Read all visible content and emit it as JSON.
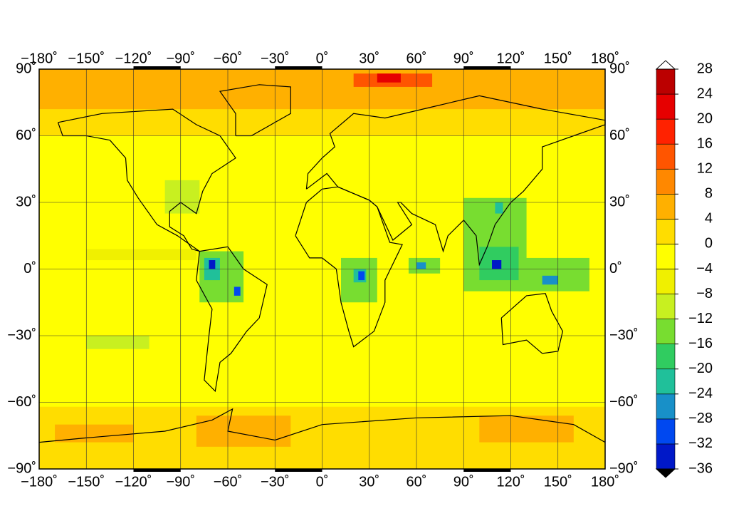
{
  "chart_data": {
    "type": "map",
    "xlim": [
      -180,
      180
    ],
    "ylim": [
      -90,
      90
    ],
    "xticks": [
      {
        "value": -180,
        "label": "−180˚"
      },
      {
        "value": -150,
        "label": "−150˚"
      },
      {
        "value": -120,
        "label": "−120˚"
      },
      {
        "value": -90,
        "label": "−90˚"
      },
      {
        "value": -60,
        "label": "−60˚"
      },
      {
        "value": -30,
        "label": "−30˚"
      },
      {
        "value": 0,
        "label": "0˚"
      },
      {
        "value": 30,
        "label": "30˚"
      },
      {
        "value": 60,
        "label": "60˚"
      },
      {
        "value": 90,
        "label": "90˚"
      },
      {
        "value": 120,
        "label": "120˚"
      },
      {
        "value": 150,
        "label": "150˚"
      },
      {
        "value": 180,
        "label": "180˚"
      }
    ],
    "yticks": [
      {
        "value": 90,
        "label": "90˚"
      },
      {
        "value": 60,
        "label": "60˚"
      },
      {
        "value": 30,
        "label": "30˚"
      },
      {
        "value": 0,
        "label": "0˚"
      },
      {
        "value": -30,
        "label": "−30˚"
      },
      {
        "value": -60,
        "label": "−60˚"
      },
      {
        "value": -90,
        "label": "−90˚"
      }
    ],
    "grid": true,
    "background_value": -2,
    "regions": [
      {
        "lon": [
          -180,
          180
        ],
        "lat": [
          60,
          90
        ],
        "value": 2
      },
      {
        "lon": [
          -180,
          180
        ],
        "lat": [
          72,
          90
        ],
        "value": 6
      },
      {
        "lon": [
          20,
          70
        ],
        "lat": [
          82,
          88
        ],
        "value": 14
      },
      {
        "lon": [
          35,
          50
        ],
        "lat": [
          84,
          88
        ],
        "value": 22
      },
      {
        "lon": [
          -180,
          180
        ],
        "lat": [
          -90,
          -62
        ],
        "value": 2
      },
      {
        "lon": [
          -170,
          -120
        ],
        "lat": [
          -78,
          -70
        ],
        "value": 6
      },
      {
        "lon": [
          -80,
          -20
        ],
        "lat": [
          -80,
          -66
        ],
        "value": 6
      },
      {
        "lon": [
          100,
          160
        ],
        "lat": [
          -78,
          -66
        ],
        "value": 5
      },
      {
        "lon": [
          -150,
          -80
        ],
        "lat": [
          4,
          9
        ],
        "value": -8
      },
      {
        "lon": [
          -150,
          -110
        ],
        "lat": [
          -36,
          -30
        ],
        "value": -10
      },
      {
        "lon": [
          -100,
          -78
        ],
        "lat": [
          25,
          40
        ],
        "value": -10
      },
      {
        "lon": [
          -78,
          -50
        ],
        "lat": [
          -15,
          8
        ],
        "value": -14
      },
      {
        "lon": [
          -75,
          -65
        ],
        "lat": [
          -5,
          5
        ],
        "value": -22
      },
      {
        "lon": [
          -72,
          -68
        ],
        "lat": [
          0,
          4
        ],
        "value": -34
      },
      {
        "lon": [
          -56,
          -52
        ],
        "lat": [
          -12,
          -8
        ],
        "value": -30
      },
      {
        "lon": [
          12,
          35
        ],
        "lat": [
          -15,
          5
        ],
        "value": -14
      },
      {
        "lon": [
          20,
          28
        ],
        "lat": [
          -6,
          0
        ],
        "value": -22
      },
      {
        "lon": [
          23,
          27
        ],
        "lat": [
          -5,
          -1
        ],
        "value": -30
      },
      {
        "lon": [
          55,
          75
        ],
        "lat": [
          -2,
          5
        ],
        "value": -16
      },
      {
        "lon": [
          60,
          66
        ],
        "lat": [
          0,
          3
        ],
        "value": -26
      },
      {
        "lon": [
          90,
          130
        ],
        "lat": [
          -10,
          32
        ],
        "value": -14
      },
      {
        "lon": [
          100,
          125
        ],
        "lat": [
          -5,
          10
        ],
        "value": -20
      },
      {
        "lon": [
          108,
          114
        ],
        "lat": [
          0,
          4
        ],
        "value": -34
      },
      {
        "lon": [
          110,
          115
        ],
        "lat": [
          25,
          30
        ],
        "value": -24
      },
      {
        "lon": [
          125,
          170
        ],
        "lat": [
          -10,
          5
        ],
        "value": -16
      },
      {
        "lon": [
          140,
          150
        ],
        "lat": [
          -7,
          -3
        ],
        "value": -26
      }
    ],
    "colorbar": {
      "levels": [
        -36,
        -32,
        -28,
        -24,
        -20,
        -16,
        -12,
        -8,
        -4,
        0,
        4,
        8,
        12,
        16,
        20,
        24,
        28
      ],
      "colors": [
        "#0018c8",
        "#0048f0",
        "#1890c8",
        "#20c09a",
        "#30cc60",
        "#78dd30",
        "#c8f020",
        "#f0f000",
        "#ffff00",
        "#ffdd00",
        "#ffb000",
        "#ff8800",
        "#ff5500",
        "#ff2200",
        "#e60000",
        "#bb0000"
      ],
      "under_color": "#000000",
      "over_color": "#ffffff",
      "ticks": [
        {
          "value": 28,
          "label": "28"
        },
        {
          "value": 24,
          "label": "24"
        },
        {
          "value": 20,
          "label": "20"
        },
        {
          "value": 16,
          "label": "16"
        },
        {
          "value": 12,
          "label": "12"
        },
        {
          "value": 8,
          "label": "8"
        },
        {
          "value": 4,
          "label": "4"
        },
        {
          "value": 0,
          "label": "0"
        },
        {
          "value": -4,
          "label": "−4"
        },
        {
          "value": -8,
          "label": "−8"
        },
        {
          "value": -12,
          "label": "−12"
        },
        {
          "value": -16,
          "label": "−16"
        },
        {
          "value": -20,
          "label": "−20"
        },
        {
          "value": -24,
          "label": "−24"
        },
        {
          "value": -28,
          "label": "−28"
        },
        {
          "value": -32,
          "label": "−32"
        },
        {
          "value": -36,
          "label": "−36"
        }
      ]
    }
  }
}
